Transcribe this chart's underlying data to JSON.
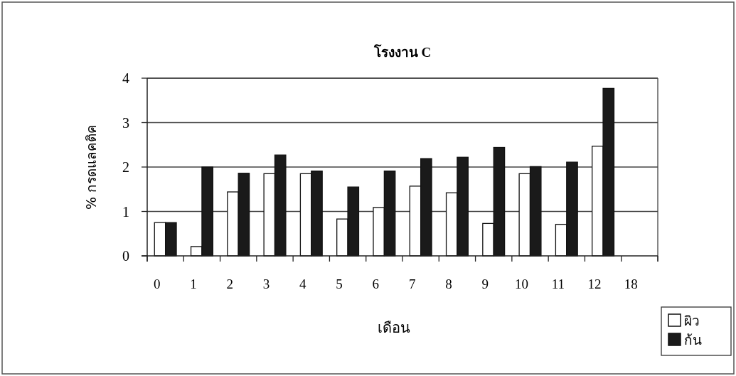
{
  "chart_data": {
    "type": "bar",
    "title": "โรงงาน C",
    "xlabel": "เดือน",
    "ylabel": "% กรดแลคติค",
    "categories": [
      "0",
      "1",
      "2",
      "3",
      "4",
      "5",
      "6",
      "7",
      "8",
      "9",
      "10",
      "11",
      "12",
      "18"
    ],
    "series": [
      {
        "name": "ผิว",
        "color": "#ffffff",
        "values": [
          0.75,
          0.21,
          1.44,
          1.85,
          1.85,
          0.83,
          1.09,
          1.57,
          1.42,
          0.73,
          1.85,
          0.71,
          2.47,
          null
        ]
      },
      {
        "name": "ก้น",
        "color": "#1a1a1a",
        "values": [
          0.75,
          2.0,
          1.86,
          2.27,
          1.91,
          1.55,
          1.91,
          2.19,
          2.22,
          2.44,
          2.01,
          2.11,
          3.77,
          null
        ]
      }
    ],
    "ylim": [
      0,
      4
    ],
    "yticks": [
      0,
      1,
      2,
      3,
      4
    ],
    "grid": "y",
    "legend": "bottom right"
  }
}
